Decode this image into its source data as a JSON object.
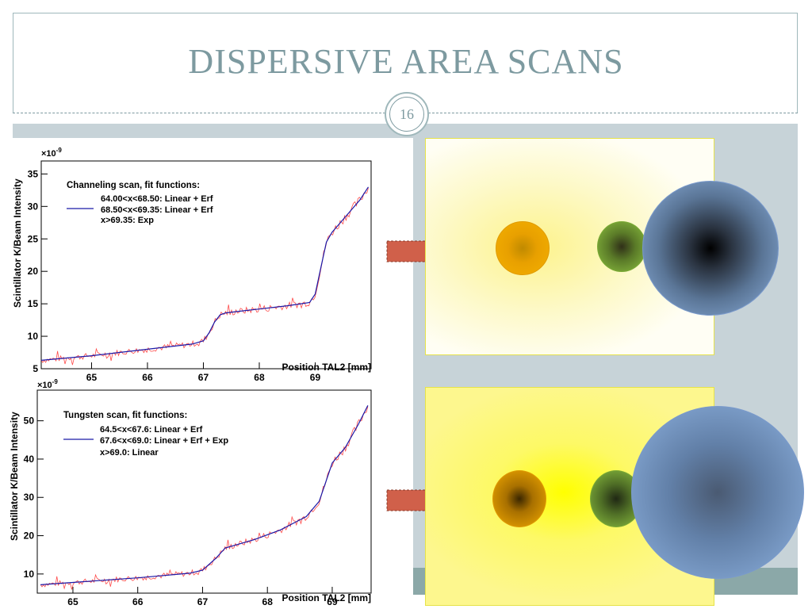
{
  "slide": {
    "title": "DISPERSIVE AREA SCANS",
    "page_number": "16"
  },
  "colors": {
    "title": "#7d9aa0",
    "data_histogram": "#ff4a4a",
    "fit_line": "#1a1aa8",
    "arrow": "#d0604a",
    "orange_spot": "#f2a900",
    "green_spot": "#8cc040",
    "blue_spot": "#8eb2e0"
  },
  "chart_data": [
    {
      "type": "line",
      "scale_label": "×10^-9",
      "ylabel": "Scintillator K/Beam Intensity",
      "xlabel": "Position TAL2 [mm]",
      "xlim": [
        64.1,
        70.0
      ],
      "ylim": [
        5,
        37
      ],
      "xticks": [
        65,
        66,
        67,
        68,
        69
      ],
      "yticks": [
        5,
        10,
        15,
        20,
        25,
        30,
        35
      ],
      "legend_title": "Channeling scan, fit functions:",
      "legend_lines": [
        "64.00<x<68.50: Linear + Erf",
        "68.50<x<69.35: Linear + Erf",
        "x>69.35: Exp"
      ],
      "series": [
        {
          "name": "fit",
          "x": [
            64.1,
            65.0,
            66.0,
            66.8,
            67.0,
            67.1,
            67.2,
            67.3,
            67.4,
            67.6,
            68.0,
            68.5,
            68.9,
            69.0,
            69.1,
            69.2,
            69.3,
            69.4,
            69.6,
            69.8,
            69.95
          ],
          "y": [
            6.3,
            7.0,
            8.0,
            8.8,
            9.3,
            10.5,
            12.2,
            13.3,
            13.6,
            13.8,
            14.2,
            14.7,
            15.2,
            16.5,
            20.5,
            24.5,
            26.0,
            27.0,
            29.0,
            31.0,
            33.0
          ]
        }
      ]
    },
    {
      "type": "line",
      "scale_label": "×10^-9",
      "ylabel": "Scintillator K/Beam Intensity",
      "xlabel": "Position TAL2 [mm]",
      "xlim": [
        64.45,
        69.6
      ],
      "ylim": [
        5,
        58
      ],
      "xticks": [
        65,
        66,
        67,
        68,
        69
      ],
      "yticks": [
        10,
        20,
        30,
        40,
        50
      ],
      "legend_title": "Tungsten scan, fit functions:",
      "legend_lines": [
        "64.5<x<67.6: Linear + Erf",
        "67.6<x<69.0: Linear + Erf + Exp",
        "x>69.0: Linear"
      ],
      "series": [
        {
          "name": "fit",
          "x": [
            64.5,
            65.0,
            66.0,
            66.8,
            67.0,
            67.2,
            67.35,
            67.5,
            67.8,
            68.2,
            68.6,
            68.8,
            68.9,
            69.0,
            69.2,
            69.4,
            69.55
          ],
          "y": [
            7.2,
            7.8,
            9.0,
            10.2,
            11.0,
            14.0,
            16.8,
            17.5,
            19.0,
            21.5,
            25.0,
            29.0,
            34.0,
            39.0,
            43.0,
            49.0,
            54.0
          ]
        }
      ]
    }
  ]
}
